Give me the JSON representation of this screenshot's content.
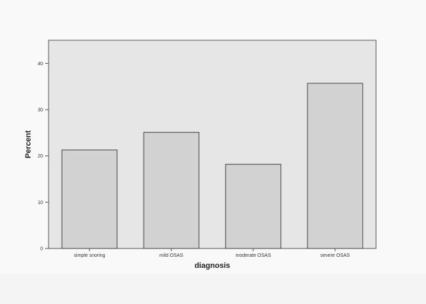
{
  "chart_data": {
    "type": "bar",
    "categories": [
      "simple snoring",
      "mild OSAS",
      "moderate OSAS",
      "severe OSAS"
    ],
    "values": [
      21.3,
      25.1,
      18.2,
      35.7
    ],
    "xlabel": "diagnosis",
    "ylabel": "Percent",
    "ylim": [
      0,
      45
    ],
    "yticks": [
      0,
      10,
      20,
      30,
      40
    ],
    "grid": false,
    "colors": {
      "plot_background": "#e6e6e6",
      "bar_fill": "#d2d2d2",
      "bar_stroke": "#444444",
      "axis": "#555555"
    }
  }
}
